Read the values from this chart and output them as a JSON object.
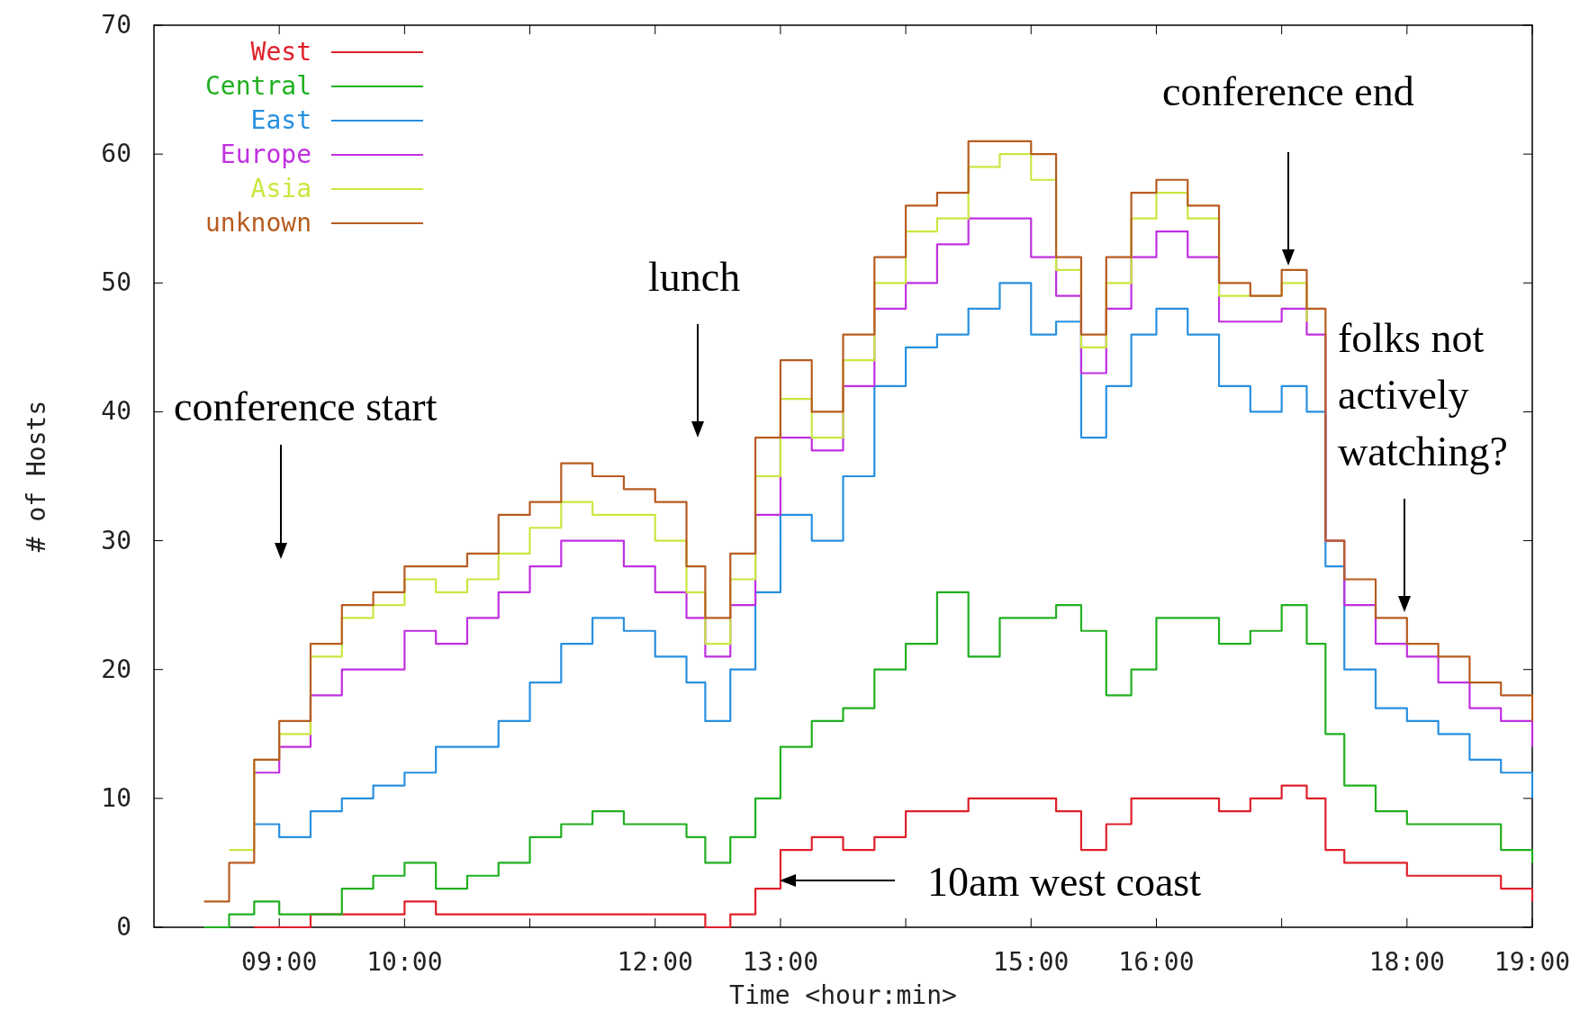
{
  "chart_data": {
    "type": "step",
    "xlabel": "Time <hour:min>",
    "ylabel": "# of Hosts",
    "x": [
      8.4,
      8.6,
      8.8,
      9,
      9.25,
      9.5,
      9.75,
      10,
      10.25,
      10.5,
      10.75,
      11,
      11.25,
      11.5,
      11.75,
      12,
      12.25,
      12.4,
      12.6,
      12.8,
      13,
      13.25,
      13.5,
      13.75,
      14,
      14.25,
      14.5,
      14.75,
      15,
      15.2,
      15.4,
      15.6,
      15.8,
      16,
      16.25,
      16.5,
      16.75,
      17,
      17.2,
      17.35,
      17.5,
      17.75,
      18,
      18.25,
      18.5,
      18.75,
      19
    ],
    "series": [
      {
        "name": "West",
        "color": "#e0202a",
        "values": [
          null,
          null,
          0,
          0,
          1,
          1,
          1,
          2,
          1,
          1,
          1,
          1,
          1,
          1,
          1,
          1,
          1,
          0,
          1,
          3,
          6,
          7,
          6,
          7,
          9,
          9,
          10,
          10,
          10,
          9,
          6,
          8,
          10,
          10,
          10,
          9,
          10,
          11,
          10,
          6,
          5,
          5,
          4,
          4,
          4,
          3,
          2
        ]
      },
      {
        "name": "Central",
        "color": "#20b020",
        "values": [
          0,
          1,
          2,
          1,
          1,
          3,
          4,
          5,
          3,
          4,
          5,
          7,
          8,
          9,
          8,
          8,
          7,
          5,
          7,
          10,
          14,
          16,
          17,
          20,
          22,
          26,
          21,
          24,
          24,
          25,
          23,
          18,
          20,
          24,
          24,
          22,
          23,
          25,
          22,
          15,
          11,
          9,
          8,
          8,
          8,
          6,
          5
        ]
      },
      {
        "name": "East",
        "color": "#2890e0",
        "values": [
          null,
          null,
          8,
          7,
          9,
          10,
          11,
          12,
          14,
          14,
          16,
          19,
          22,
          24,
          23,
          21,
          19,
          16,
          20,
          26,
          32,
          30,
          35,
          42,
          45,
          46,
          48,
          50,
          46,
          47,
          38,
          42,
          46,
          48,
          46,
          42,
          40,
          42,
          40,
          28,
          20,
          17,
          16,
          15,
          13,
          12,
          10
        ]
      },
      {
        "name": "Europe",
        "color": "#c030e0",
        "values": [
          null,
          null,
          12,
          14,
          18,
          20,
          20,
          23,
          22,
          24,
          26,
          28,
          30,
          30,
          28,
          26,
          24,
          21,
          25,
          32,
          38,
          37,
          42,
          48,
          50,
          53,
          55,
          55,
          52,
          49,
          43,
          48,
          52,
          54,
          52,
          47,
          47,
          48,
          46,
          30,
          25,
          22,
          21,
          19,
          17,
          16,
          14
        ]
      },
      {
        "name": "Asia",
        "color": "#c8e840",
        "values": [
          null,
          6,
          13,
          15,
          21,
          24,
          25,
          27,
          26,
          27,
          29,
          31,
          33,
          32,
          32,
          30,
          26,
          22,
          27,
          35,
          41,
          38,
          44,
          50,
          54,
          55,
          59,
          60,
          58,
          51,
          45,
          50,
          55,
          57,
          55,
          49,
          49,
          50,
          47,
          null,
          null,
          null,
          null,
          null,
          null,
          null,
          null
        ]
      },
      {
        "name": "unknown",
        "color": "#b85c20",
        "values": [
          2,
          5,
          13,
          16,
          22,
          25,
          26,
          28,
          28,
          29,
          32,
          33,
          36,
          35,
          34,
          33,
          28,
          24,
          29,
          38,
          44,
          40,
          46,
          52,
          56,
          57,
          61,
          61,
          60,
          52,
          46,
          52,
          57,
          58,
          56,
          50,
          49,
          51,
          48,
          30,
          27,
          24,
          22,
          21,
          19,
          18,
          16
        ]
      }
    ],
    "xlim": [
      8,
      19
    ],
    "xticks": [
      {
        "value": 9,
        "label": "09:00"
      },
      {
        "value": 10,
        "label": "10:00"
      },
      {
        "value": 11,
        "label": null
      },
      {
        "value": 12,
        "label": "12:00"
      },
      {
        "value": 13,
        "label": "13:00"
      },
      {
        "value": 14,
        "label": null
      },
      {
        "value": 15,
        "label": "15:00"
      },
      {
        "value": 16,
        "label": "16:00"
      },
      {
        "value": 17,
        "label": null
      },
      {
        "value": 18,
        "label": "18:00"
      },
      {
        "value": 19,
        "label": "19:00"
      }
    ],
    "ylim": [
      0,
      70
    ],
    "yticks": [
      0,
      10,
      20,
      30,
      40,
      50,
      60,
      70
    ],
    "legend": "top left",
    "annotations": [
      "conference start",
      "lunch",
      "conference end",
      "folks not\nactively\nwatching?",
      "10am west coast"
    ]
  }
}
